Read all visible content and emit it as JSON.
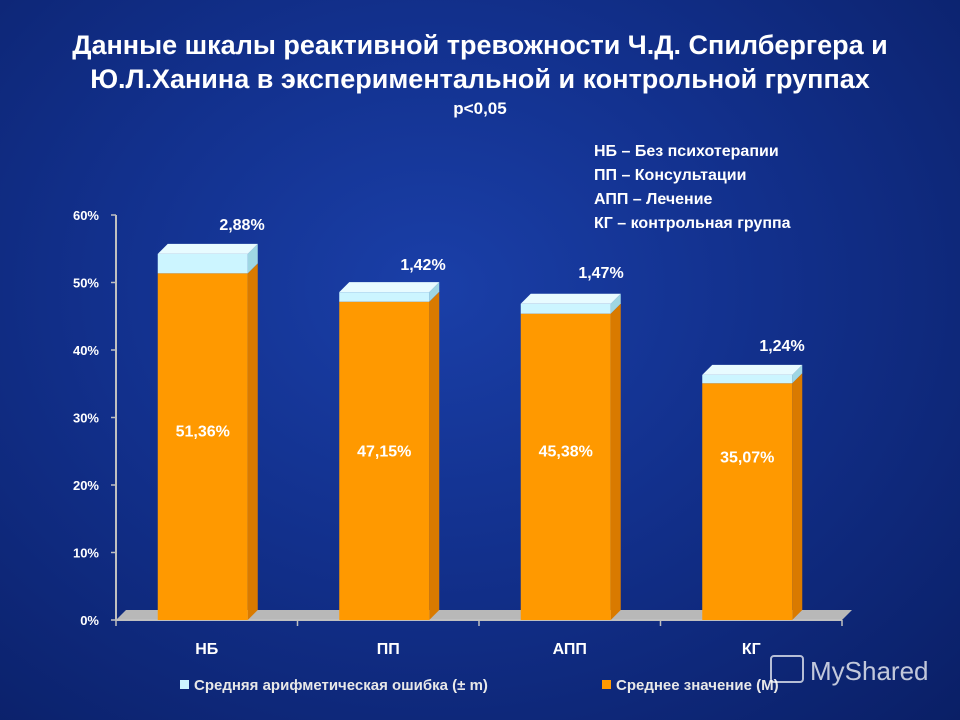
{
  "title": {
    "line1": "Данные шкалы реактивной тревожности Ч.Д. Спилбергера и",
    "line2": "Ю.Л.Ханина в экспериментальной и контрольной группах",
    "pvalue": "p<0,05"
  },
  "legend_top": [
    "НБ – Без психотерапии",
    "ПП – Консультации",
    "АПП – Лечение",
    "КГ – контрольная группа"
  ],
  "colors": {
    "mean": "#ff9900",
    "mean_side": "#d97a00",
    "error": "#ccf5ff",
    "error_side": "#9fd6e3",
    "axis": "#c0c0c0",
    "floor": "#b8b8b8"
  },
  "chart_data": {
    "type": "bar",
    "stacked": true,
    "categories": [
      "НБ",
      "ПП",
      "АПП",
      "КГ"
    ],
    "series": [
      {
        "name": "Среднее значение (M)",
        "values": [
          51.36,
          47.15,
          45.38,
          35.07
        ],
        "labels": [
          "51,36%",
          "47,15%",
          "45,38%",
          "35,07%"
        ]
      },
      {
        "name": "Средняя арифметическая ошибка (± m)",
        "values": [
          2.88,
          1.42,
          1.47,
          1.24
        ],
        "labels": [
          "2,88%",
          "1,42%",
          "1,47%",
          "1,24%"
        ]
      }
    ],
    "ylim": [
      0,
      60
    ],
    "yticks": [
      "0%",
      "10%",
      "20%",
      "30%",
      "40%",
      "50%",
      "60%"
    ],
    "legend": {
      "error_label": "Средняя арифметическая ошибка (± m)",
      "mean_label": "Среднее значение (M)",
      "position": "bottom"
    }
  },
  "watermark": "MyShared"
}
